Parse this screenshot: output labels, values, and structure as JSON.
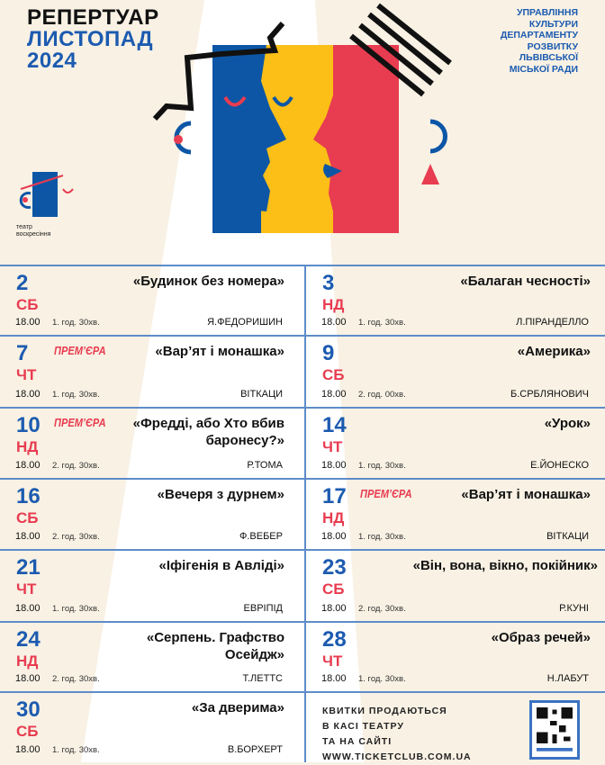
{
  "header": {
    "line1": "РЕПЕРТУАР",
    "line2": "ЛИСТОПАД",
    "line3": "2024"
  },
  "organization": [
    "УПРАВЛІННЯ",
    "КУЛЬТУРИ",
    "ДЕПАРТАМЕНТУ",
    "РОЗВИТКУ",
    "ЛЬВІВСЬКОЇ",
    "МІСЬКОЇ РАДИ"
  ],
  "logo": {
    "text1": "театр",
    "text2": "воскресіння"
  },
  "colors": {
    "blue": "#1c5bb0",
    "red": "#e83c50",
    "yellow": "#fbbf17",
    "cream": "#f8f1e4"
  },
  "premiere_label": "ПРЕМ’ЄРА",
  "events": [
    {
      "day": "2",
      "weekday": "СБ",
      "time": "18.00",
      "duration": "1. год. 30хв.",
      "title": "«Будинок без номера»",
      "author": "Я.ФЕДОРИШИН",
      "premiere": false
    },
    {
      "day": "3",
      "weekday": "НД",
      "time": "18.00",
      "duration": "1. год. 30хв.",
      "title": "«Балаган чесності»",
      "author": "Л.ПІРАНДЕЛЛО",
      "premiere": false
    },
    {
      "day": "7",
      "weekday": "ЧТ",
      "time": "18.00",
      "duration": "1. год. 30хв.",
      "title": "«Вар’ят і монашка»",
      "author": "ВІТКАЦИ",
      "premiere": true
    },
    {
      "day": "9",
      "weekday": "СБ",
      "time": "18.00",
      "duration": "2. год. 00хв.",
      "title": "«Америка»",
      "author": "Б.СРБЛЯНОВИЧ",
      "premiere": false
    },
    {
      "day": "10",
      "weekday": "НД",
      "time": "18.00",
      "duration": "2. год. 30хв.",
      "title": "«Фредді, або Хто вбив баронесу?»",
      "author": "Р.ТОМА",
      "premiere": true
    },
    {
      "day": "14",
      "weekday": "ЧТ",
      "time": "18.00",
      "duration": "1. год. 30хв.",
      "title": "«Урок»",
      "author": "Е.ЙОНЕСКО",
      "premiere": false
    },
    {
      "day": "16",
      "weekday": "СБ",
      "time": "18.00",
      "duration": "2. год. 30хв.",
      "title": "«Вечеря з дурнем»",
      "author": "Ф.ВЕБЕР",
      "premiere": false
    },
    {
      "day": "17",
      "weekday": "НД",
      "time": "18.00",
      "duration": "1. год. 30хв.",
      "title": "«Вар’ят і монашка»",
      "author": "ВІТКАЦИ",
      "premiere": true
    },
    {
      "day": "21",
      "weekday": "ЧТ",
      "time": "18.00",
      "duration": "1. год. 30хв.",
      "title": "«Іфігенія в Авліді»",
      "author": "ЕВРІПІД",
      "premiere": false
    },
    {
      "day": "23",
      "weekday": "СБ",
      "time": "18.00",
      "duration": "2. год. 30хв.",
      "title": "«Він, вона, вікно, покійник»",
      "author": "Р.КУНІ",
      "premiere": false
    },
    {
      "day": "24",
      "weekday": "НД",
      "time": "18.00",
      "duration": "2. год. 30хв.",
      "title": "«Серпень. Графство Осейдж»",
      "author": "Т.ЛЕТТС",
      "premiere": false
    },
    {
      "day": "28",
      "weekday": "ЧТ",
      "time": "18.00",
      "duration": "1. год. 30хв.",
      "title": "«Образ речей»",
      "author": "Н.ЛАБУТ",
      "premiere": false
    },
    {
      "day": "30",
      "weekday": "СБ",
      "time": "18.00",
      "duration": "1. год. 30хв.",
      "title": "«За дверима»",
      "author": "В.БОРХЕРТ",
      "premiere": false
    }
  ],
  "tickets": [
    "КВИТКИ  ПРОДАЮТЬСЯ",
    "В  КАСІ ТЕАТРУ",
    "ТА НА САЙТІ",
    "WWW.TICKETCLUB.COM.UA"
  ],
  "qr": {
    "icon": "qr-code-icon"
  }
}
